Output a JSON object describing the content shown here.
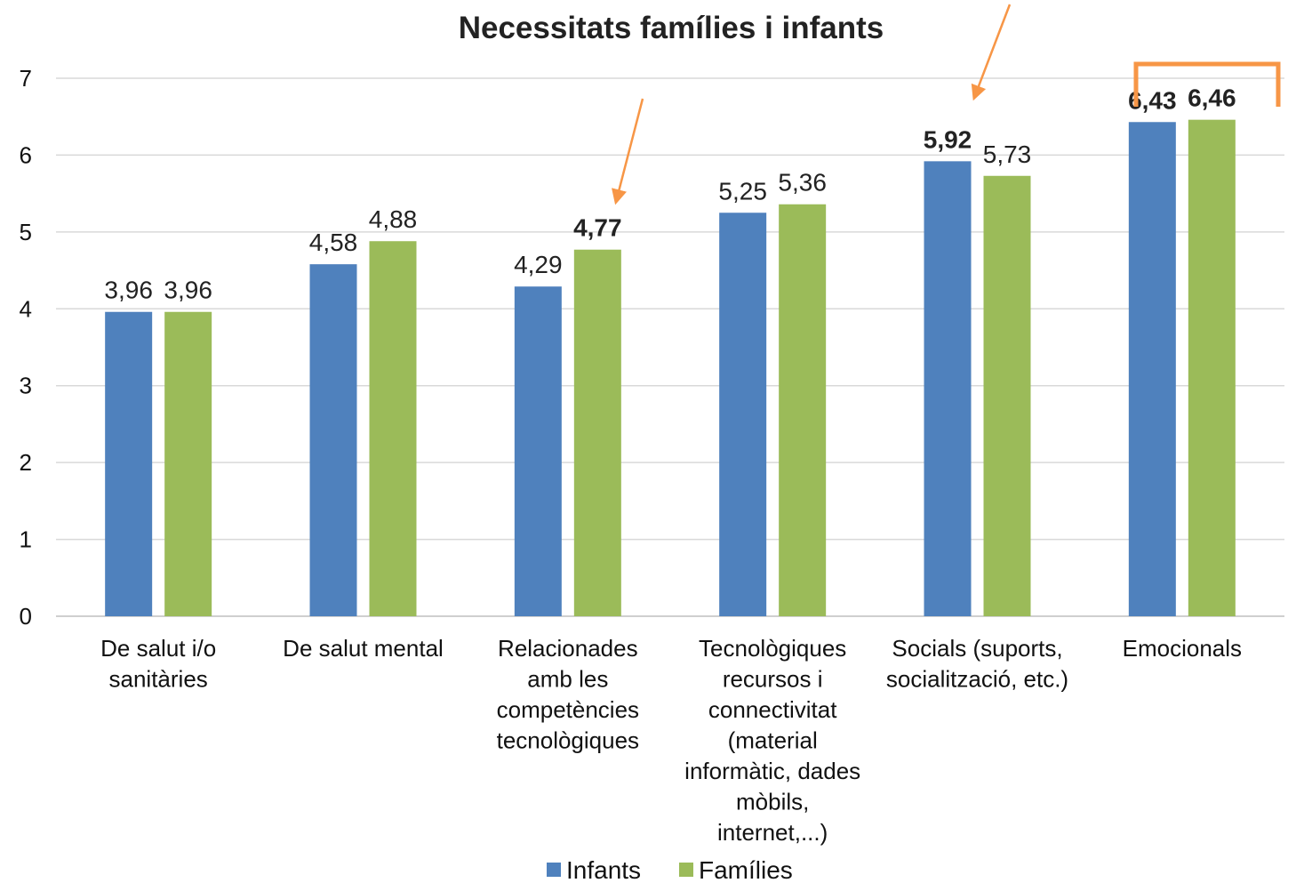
{
  "chart_data": {
    "type": "bar",
    "title": "Necessitats famílies i infants",
    "xlabel": "",
    "ylabel": "",
    "ylim": [
      0,
      7
    ],
    "yticks": [
      "0",
      "1",
      "2",
      "3",
      "4",
      "5",
      "6",
      "7"
    ],
    "grid": true,
    "legend_position": "bottom",
    "categories": [
      [
        "De salut i/o",
        "sanitàries"
      ],
      [
        "De salut mental"
      ],
      [
        "Relacionades",
        "amb les",
        "competències",
        "tecnològiques"
      ],
      [
        "Tecnològiques",
        "recursos i",
        "connectivitat",
        "(material",
        "informàtic, dades",
        "mòbils,",
        "internet,...)"
      ],
      [
        "Socials (suports,",
        "socialització, etc.)"
      ],
      [
        "Emocionals"
      ]
    ],
    "series": [
      {
        "name": "Infants",
        "color": "#4F81BD",
        "values": [
          3.96,
          4.58,
          4.29,
          5.25,
          5.92,
          6.43
        ],
        "labels": [
          "3,96",
          "4,58",
          "4,29",
          "5,25",
          "5,92",
          "6,43"
        ],
        "bold": [
          false,
          false,
          false,
          false,
          true,
          true
        ]
      },
      {
        "name": "Famílies",
        "color": "#9BBB59",
        "values": [
          3.96,
          4.88,
          4.77,
          5.36,
          5.73,
          6.46
        ],
        "labels": [
          "3,96",
          "4,88",
          "4,77",
          "5,36",
          "5,73",
          "6,46"
        ],
        "bold": [
          false,
          false,
          true,
          false,
          false,
          true
        ]
      }
    ],
    "annotations": {
      "color": "#F79646",
      "arrows": [
        "arrow-to-relacionades-families",
        "arrow-to-socials-infants"
      ],
      "bracket": "highlight-emocionals"
    }
  }
}
